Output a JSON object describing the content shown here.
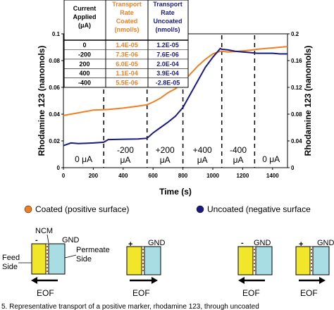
{
  "chart_data": {
    "type": "line",
    "xlabel": "Time (s)",
    "ylabel": "Rhodamine 123 (nanomols)",
    "y2label": "Rhodamine 123 (nanomols)",
    "xlim": [
      0,
      1500
    ],
    "ylim": [
      0,
      0.1
    ],
    "y2lim": [
      0,
      0.2
    ],
    "xticks": [
      "0",
      "200",
      "400",
      "600",
      "800",
      "1000",
      "1200",
      "1400"
    ],
    "yticks": [
      "0",
      "0.02",
      "0.04",
      "0.06",
      "0.08",
      "0.1"
    ],
    "y2ticks": [
      "0",
      "0.04",
      "0.08",
      "0.12",
      "0.16",
      "0.2"
    ],
    "segment_boundaries_s": [
      270,
      560,
      800,
      1060,
      1280
    ],
    "segment_labels": [
      {
        "lines": [
          "0 μA"
        ],
        "x_center": 135
      },
      {
        "lines": [
          "-200",
          "μA"
        ],
        "x_center": 415
      },
      {
        "lines": [
          "+200",
          "μA"
        ],
        "x_center": 680
      },
      {
        "lines": [
          "+400",
          "μA"
        ],
        "x_center": 930
      },
      {
        "lines": [
          "-400",
          "μA"
        ],
        "x_center": 1170
      },
      {
        "lines": [
          "0 μA"
        ],
        "x_center": 1390
      }
    ],
    "series": [
      {
        "name": "Coated (positive surface)",
        "axis": "left",
        "color": "#f07f22",
        "x": [
          0,
          100,
          200,
          300,
          400,
          500,
          560,
          600,
          650,
          700,
          750,
          800,
          850,
          900,
          950,
          1000,
          1050,
          1060,
          1100,
          1150,
          1200,
          1250,
          1300,
          1350,
          1400,
          1450,
          1500
        ],
        "y": [
          0.039,
          0.041,
          0.043,
          0.0435,
          0.0445,
          0.046,
          0.047,
          0.049,
          0.052,
          0.056,
          0.059,
          0.064,
          0.07,
          0.076,
          0.081,
          0.085,
          0.087,
          0.087,
          0.0865,
          0.0868,
          0.0872,
          0.0878,
          0.0885,
          0.089,
          0.0895,
          0.09,
          0.0905
        ]
      },
      {
        "name": "Uncoated (negative surface)",
        "axis": "right",
        "color": "#1a1a80",
        "x": [
          0,
          50,
          100,
          200,
          270,
          300,
          400,
          500,
          560,
          600,
          650,
          700,
          750,
          800,
          850,
          900,
          950,
          1000,
          1050,
          1060,
          1100,
          1150,
          1200,
          1250,
          1300,
          1350,
          1400,
          1450,
          1500
        ],
        "y": [
          0.033,
          0.037,
          0.036,
          0.037,
          0.038,
          0.042,
          0.0425,
          0.043,
          0.044,
          0.052,
          0.06,
          0.068,
          0.077,
          0.09,
          0.11,
          0.13,
          0.15,
          0.165,
          0.178,
          0.177,
          0.176,
          0.174,
          0.173,
          0.172,
          0.171,
          0.171,
          0.171,
          0.17,
          0.17
        ]
      }
    ],
    "table": {
      "headers": [
        [
          "Current",
          "Applied",
          "(μA)"
        ],
        [
          "Transport",
          "Rate",
          "Coated",
          "(nmol/s)"
        ],
        [
          "Transport",
          "Rate",
          "Uncoated",
          "(nmol/s)"
        ]
      ],
      "rows": [
        [
          "0",
          "1.4E-05",
          "1.2E-05"
        ],
        [
          "-200",
          "7.3E-06",
          "7.6E-06"
        ],
        [
          "200",
          "6.0E-05",
          "2.0E-04"
        ],
        [
          "400",
          "1.1E-04",
          "3.9E-04"
        ],
        [
          "-400",
          "5.5E-06",
          "-2.8E-05"
        ]
      ]
    },
    "legend": [
      "Coated (positive surface)",
      "Uncoated (negative surface"
    ]
  },
  "diagram": {
    "panel1": {
      "sign": "-",
      "gnd": "GND",
      "ncm": "NCM",
      "feed": [
        "Feed",
        "Side"
      ],
      "permeate": [
        "Permeate",
        "Side"
      ],
      "eof": "EOF"
    },
    "panel2": {
      "sign": "+",
      "gnd": "GND",
      "eof": "EOF"
    },
    "panel3": {
      "sign": "-",
      "gnd": "GND",
      "eof": "EOF"
    },
    "panel4": {
      "sign": "+",
      "gnd": "GND",
      "eof": "EOF"
    }
  },
  "caption": "5. Representative transport of a positive marker, rhodamine 123, through uncoated"
}
